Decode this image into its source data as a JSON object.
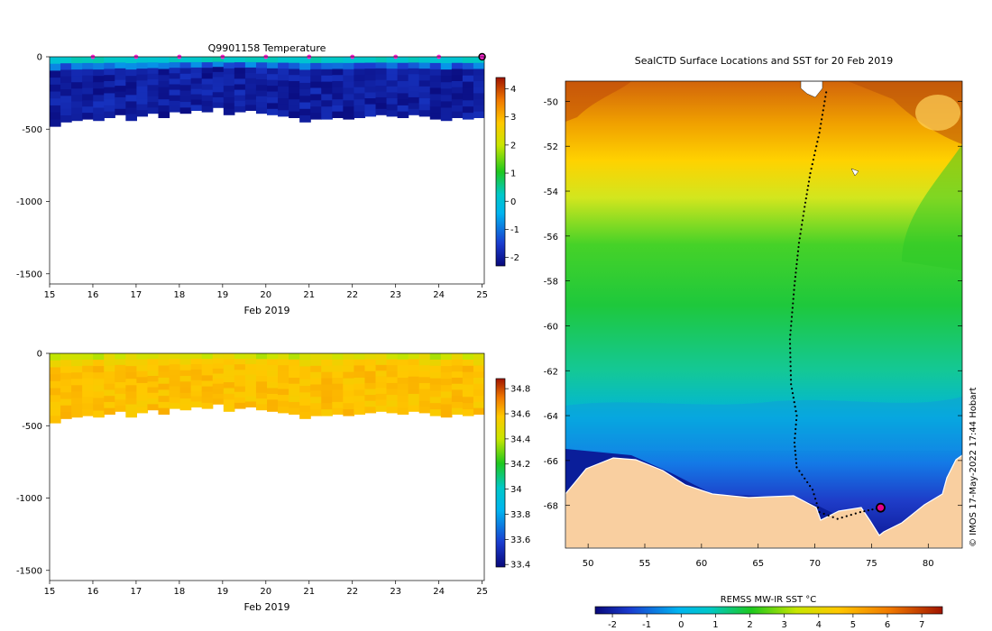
{
  "chart_data": [
    {
      "type": "heatmap",
      "title": "Q9901158  Temperature",
      "xlabel": "Feb 2019",
      "ylabel": "",
      "x_ticks": [
        15,
        16,
        17,
        18,
        19,
        20,
        21,
        22,
        23,
        24,
        25
      ],
      "y_ticks": [
        0,
        -500,
        -1000,
        -1500
      ],
      "xlim": [
        15,
        25.05
      ],
      "ylim": [
        -1570,
        0
      ],
      "profile_depths": [
        -480,
        -450,
        -440,
        -430,
        -440,
        -420,
        -400,
        -440,
        -410,
        -390,
        -420,
        -380,
        -390,
        -370,
        -380,
        -350,
        -400,
        -380,
        -370,
        -390,
        -400,
        -410,
        -420,
        -450,
        -430,
        -430,
        -420,
        -430,
        -420,
        -410,
        -400,
        -410,
        -420,
        -400,
        -410,
        -430,
        -440,
        -420,
        -430,
        -420
      ],
      "surface_markers_x": [
        16,
        17,
        18,
        19,
        20,
        21,
        22,
        23,
        24,
        25
      ],
      "surface_temperature_band": [
        0,
        1
      ],
      "deep_temperature_band": [
        -2.2,
        -1.4
      ],
      "colorbar": {
        "min": -2.3,
        "max": 4.4,
        "ticks": [
          4,
          3,
          2,
          1,
          0,
          -1,
          -2
        ]
      }
    },
    {
      "type": "heatmap",
      "title": "",
      "xlabel": "Feb 2019",
      "ylabel": "",
      "x_ticks": [
        15,
        16,
        17,
        18,
        19,
        20,
        21,
        22,
        23,
        24,
        25
      ],
      "y_ticks": [
        0,
        -500,
        -1000,
        -1500
      ],
      "xlim": [
        15,
        25.05
      ],
      "ylim": [
        -1570,
        0
      ],
      "profile_depths": [
        -480,
        -450,
        -440,
        -430,
        -440,
        -420,
        -400,
        -440,
        -410,
        -390,
        -420,
        -380,
        -390,
        -370,
        -380,
        -350,
        -400,
        -380,
        -370,
        -390,
        -400,
        -410,
        -420,
        -450,
        -430,
        -430,
        -420,
        -430,
        -420,
        -410,
        -400,
        -410,
        -420,
        -400,
        -410,
        -430,
        -440,
        -420,
        -430,
        -420
      ],
      "surface_salinity_band": [
        34.1,
        34.3
      ],
      "deep_salinity_band": [
        34.55,
        34.7
      ],
      "colorbar": {
        "min": 33.38,
        "max": 34.88,
        "ticks": [
          "34.8",
          "34.6",
          "34.4",
          "34.2",
          "34",
          "33.8",
          "33.6",
          "33.4"
        ]
      }
    },
    {
      "type": "heatmap",
      "title": "SealCTD Surface Locations and SST for 20 Feb 2019",
      "xlabel": "",
      "ylabel": "",
      "x_ticks": [
        50,
        55,
        60,
        65,
        70,
        75,
        80
      ],
      "y_ticks": [
        -50,
        -52,
        -54,
        -56,
        -58,
        -60,
        -62,
        -64,
        -66,
        -68
      ],
      "xlim": [
        48,
        83
      ],
      "ylim": [
        -69.9,
        -49.1
      ],
      "colorbar_label": "REMSS MW-IR SST °C",
      "colorbar": {
        "min": -2.5,
        "max": 7.6,
        "ticks": [
          -2,
          -1,
          0,
          1,
          2,
          3,
          4,
          5,
          6,
          7
        ]
      },
      "seal_track": [
        [
          71,
          -49.6
        ],
        [
          70.4,
          -51.4
        ],
        [
          69.6,
          -53.2
        ],
        [
          69.1,
          -54.7
        ],
        [
          68.6,
          -56.3
        ],
        [
          68.2,
          -58.2
        ],
        [
          67.8,
          -60.6
        ],
        [
          67.9,
          -62.6
        ],
        [
          68.4,
          -64
        ],
        [
          68.2,
          -65.2
        ],
        [
          68.4,
          -66.3
        ],
        [
          69.8,
          -67.3
        ],
        [
          70.4,
          -68.3
        ],
        [
          72,
          -68.6
        ],
        [
          74,
          -68.3
        ],
        [
          75.8,
          -68.1
        ]
      ],
      "latest_position": [
        75.8,
        -68.1
      ],
      "credit": "© IMOS 17-May-2022 17:44 Hobart"
    }
  ]
}
